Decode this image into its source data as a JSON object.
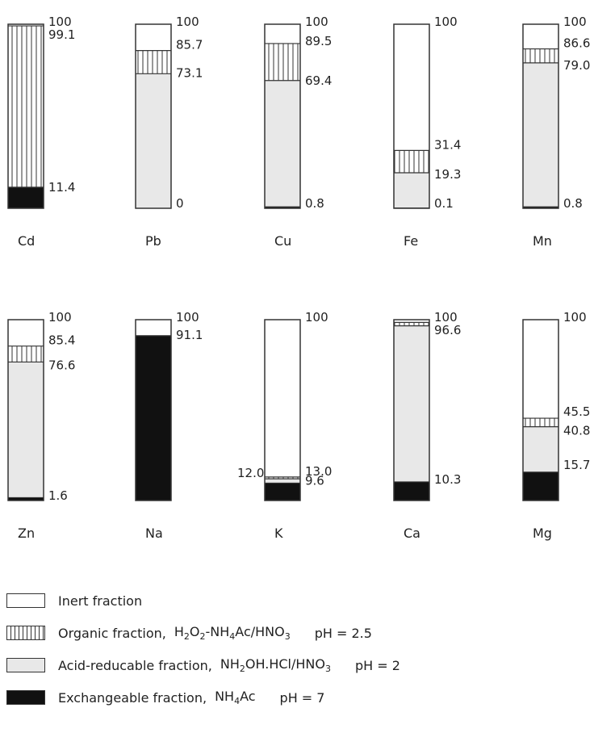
{
  "chart_data": {
    "type": "bar",
    "stacking": "stacked-100",
    "unit": "%",
    "order_bottom_to_top": [
      "exchangeable",
      "acid_reducable",
      "organic",
      "inert"
    ],
    "fractions": [
      {
        "key": "inert",
        "fill": "#ffffff",
        "pattern": "none"
      },
      {
        "key": "organic",
        "fill": "#ffffff",
        "pattern": "vertical-lines"
      },
      {
        "key": "acid_reducable",
        "fill": "#e8e8e8",
        "pattern": "none"
      },
      {
        "key": "exchangeable",
        "fill": "#111111",
        "pattern": "none"
      }
    ],
    "elements": [
      {
        "name": "Cd",
        "boundaries": [
          11.4,
          11.4,
          99.1,
          100
        ],
        "labels": [
          "100",
          "99.1",
          "11.4"
        ]
      },
      {
        "name": "Pb",
        "boundaries": [
          0,
          73.1,
          85.7,
          100
        ],
        "labels": [
          "100",
          "85.7",
          "73.1",
          "0"
        ]
      },
      {
        "name": "Cu",
        "boundaries": [
          0.8,
          69.4,
          89.5,
          100
        ],
        "labels": [
          "100",
          "89.5",
          "69.4",
          "0.8"
        ]
      },
      {
        "name": "Fe",
        "boundaries": [
          0.1,
          19.3,
          31.4,
          100
        ],
        "labels": [
          "100",
          "31.4",
          "19.3",
          "0.1"
        ]
      },
      {
        "name": "Mn",
        "boundaries": [
          0.8,
          79.0,
          86.6,
          100
        ],
        "labels": [
          "100",
          "86.6",
          "79.0",
          "0.8"
        ]
      },
      {
        "name": "Zn",
        "boundaries": [
          1.6,
          76.6,
          85.4,
          100
        ],
        "labels": [
          "100",
          "85.4",
          "76.6",
          "1.6"
        ]
      },
      {
        "name": "Na",
        "boundaries": [
          91.1,
          91.1,
          91.1,
          100
        ],
        "labels": [
          "100",
          "91.1"
        ]
      },
      {
        "name": "K",
        "boundaries": [
          9.6,
          12.0,
          13.0,
          100
        ],
        "labels": [
          "100",
          "13.0",
          "12.0",
          "9.6"
        ]
      },
      {
        "name": "Ca",
        "boundaries": [
          10.3,
          96.6,
          98.5,
          100
        ],
        "labels": [
          "100",
          "96.6",
          "10.3"
        ]
      },
      {
        "name": "Mg",
        "boundaries": [
          15.7,
          40.8,
          45.5,
          100
        ],
        "labels": [
          "100",
          "45.5",
          "40.8",
          "15.7"
        ]
      }
    ]
  },
  "legend": {
    "inert": {
      "label": "Inert fraction"
    },
    "organic": {
      "label": "Organic fraction,",
      "reagent_html": "H<sub>2</sub>O<sub>2</sub>-NH<sub>4</sub>Ac/HNO<sub>3</sub>",
      "ph": "pH = 2.5"
    },
    "acid_reducable": {
      "label": "Acid-reducable fraction,",
      "reagent_html": "NH<sub>2</sub>OH.HCl/HNO<sub>3</sub>",
      "ph": "pH = 2"
    },
    "exchangeable": {
      "label": "Exchangeable fraction,",
      "reagent_html": "NH<sub>4</sub>Ac",
      "ph": "pH = 7"
    }
  }
}
